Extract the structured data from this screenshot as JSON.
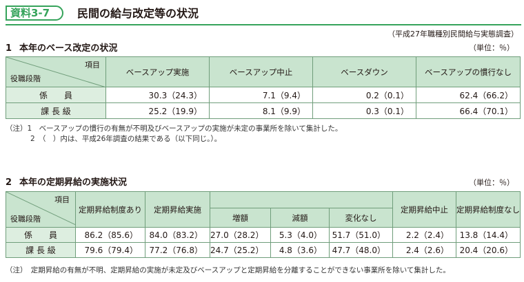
{
  "header": {
    "tag": "資料3-7",
    "title": "民間の給与改定等の状況",
    "source": "（平成27年職種別民間給与実態調査）"
  },
  "section1": {
    "number": "1",
    "title": "本年のベース改定の状況",
    "unit": "（単位：％）",
    "corner_top": "項目",
    "corner_bottom": "役職段階",
    "columns": [
      "ベースアップ実施",
      "ベースアップ中止",
      "ベースダウン",
      "ベースアップの慣行なし"
    ],
    "rows": [
      {
        "label": "係　　員",
        "cells": [
          "30.3（24.3）",
          "7.1（9.4）",
          "0.2（0.1）",
          "62.4（66.2）"
        ]
      },
      {
        "label": "課 長 級",
        "cells": [
          "25.2（19.9）",
          "8.1（9.9）",
          "0.3（0.1）",
          "66.4（70.1）"
        ]
      }
    ],
    "note1": "（注）1　ベースアップの慣行の有無が不明及びベースアップの実施が未定の事業所を除いて集計した。",
    "note2": "2　（　）内は、平成26年調査の結果である（以下同じ。）。"
  },
  "section2": {
    "number": "2",
    "title": "本年の定期昇給の実施状況",
    "unit": "（単位：％）",
    "corner_top": "項目",
    "corner_bottom": "役職段階",
    "col_ari": "定期昇給制度あり",
    "col_jisshi": "定期昇給実施",
    "col_zougaku": "増額",
    "col_gengaku": "減額",
    "col_henka": "変化なし",
    "col_chushi": "定期昇給中止",
    "col_nashi": "定期昇給制度なし",
    "rows": [
      {
        "label": "係　　員",
        "cells": [
          "86.2（85.6）",
          "84.0（83.2）",
          "27.0（28.2）",
          "5.3（4.0）",
          "51.7（51.0）",
          "2.2（2.4）",
          "13.8（14.4）"
        ]
      },
      {
        "label": "課 長 級",
        "cells": [
          "79.6（79.4）",
          "77.2（76.8）",
          "24.7（25.2）",
          "4.8（3.6）",
          "47.7（48.0）",
          "2.4（2.6）",
          "20.4（20.6）"
        ]
      }
    ],
    "note": "（注）　定期昇給の有無が不明、定期昇給の実施が未定及びベースアップと定期昇給を分離することができない事業所を除いて集計した。"
  }
}
